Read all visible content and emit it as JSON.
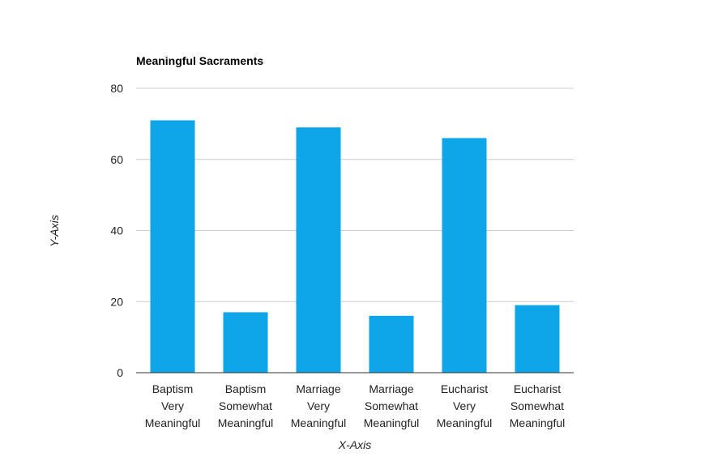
{
  "chart_data": {
    "type": "bar",
    "title": "Meaningful Sacraments",
    "xlabel": "X-Axis",
    "ylabel": "Y-Axis",
    "categories": [
      [
        "Baptism",
        "Very",
        "Meaningful"
      ],
      [
        "Baptism",
        "Somewhat",
        "Meaningful"
      ],
      [
        "Marriage",
        "Very",
        "Meaningful"
      ],
      [
        "Marriage",
        "Somewhat",
        "Meaningful"
      ],
      [
        "Eucharist",
        "Very",
        "Meaningful"
      ],
      [
        "Eucharist",
        "Somewhat",
        "Meaningful"
      ]
    ],
    "values": [
      71,
      17,
      69,
      16,
      66,
      19
    ],
    "ylim": [
      0,
      80
    ],
    "yticks": [
      "0",
      "20",
      "40",
      "60",
      "80"
    ],
    "grid": true,
    "legend": "none",
    "bar_color": "#0ea5e9"
  }
}
